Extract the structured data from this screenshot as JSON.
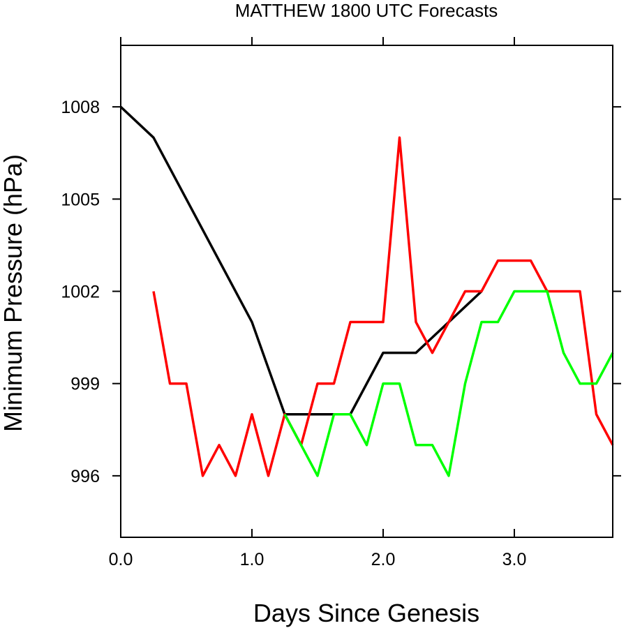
{
  "chart_data": {
    "type": "line",
    "title": "MATTHEW 1800 UTC Forecasts",
    "xlabel": "Days Since Genesis",
    "ylabel": "Minimum Pressure (hPa)",
    "xlim": [
      0,
      3.75
    ],
    "ylim": [
      994,
      1010
    ],
    "x_ticks": [
      0,
      1,
      2,
      3
    ],
    "x_tick_labels": [
      "0.0",
      "1.0",
      "2.0",
      "3.0"
    ],
    "y_ticks": [
      996,
      999,
      1002,
      1005,
      1008
    ],
    "y_tick_labels": [
      "996",
      "999",
      "1002",
      "1005",
      "1008"
    ],
    "grid": false,
    "legend": "none",
    "series": [
      {
        "color": "#000000",
        "x": [
          0,
          0.25,
          1.0,
          1.25,
          1.75,
          2.0,
          2.25,
          2.75
        ],
        "y": [
          1008,
          1007,
          1001,
          998,
          998,
          1000,
          1000,
          1002
        ]
      },
      {
        "color": "#ff0000",
        "x": [
          0.25,
          0.375,
          0.5,
          0.625,
          0.75,
          0.875,
          1.0,
          1.125,
          1.25,
          1.375,
          1.5,
          1.625,
          1.75,
          1.875,
          2.0,
          2.125,
          2.25,
          2.375,
          2.5,
          2.625,
          2.75,
          2.875,
          3.0,
          3.125,
          3.25,
          3.375,
          3.5,
          3.625,
          3.75
        ],
        "y": [
          1002,
          999,
          999,
          996,
          997,
          996,
          998,
          996,
          998,
          997,
          999,
          999,
          1001,
          1001,
          1001,
          1007,
          1001,
          1000,
          1001,
          1002,
          1002,
          1003,
          1003,
          1003,
          1002,
          1002,
          1002,
          998,
          997
        ]
      },
      {
        "color": "#00ff00",
        "x": [
          1.25,
          1.375,
          1.5,
          1.625,
          1.75,
          1.875,
          2.0,
          2.125,
          2.25,
          2.375,
          2.5,
          2.625,
          2.75,
          2.875,
          3.0,
          3.125,
          3.25,
          3.375,
          3.5,
          3.625,
          3.75
        ],
        "y": [
          998,
          997,
          996,
          998,
          998,
          997,
          999,
          999,
          997,
          997,
          996,
          999,
          1001,
          1001,
          1002,
          1002,
          1002,
          1000,
          999,
          999,
          1000
        ]
      }
    ]
  }
}
